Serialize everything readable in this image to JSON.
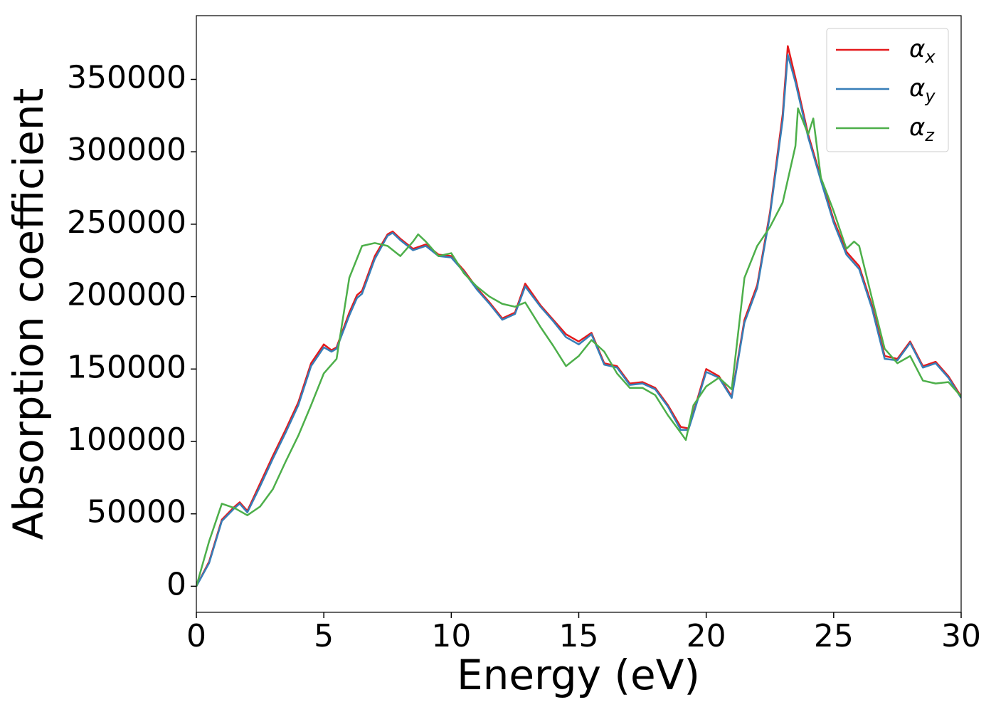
{
  "chart_data": {
    "type": "line",
    "xlabel": "Energy (eV)",
    "ylabel": "Absorption coefficient",
    "xlim": [
      0,
      30
    ],
    "xticks": [
      0,
      5,
      10,
      15,
      20,
      25,
      30
    ],
    "ylim": [
      -18000,
      394000
    ],
    "yticks": [
      0,
      50000,
      100000,
      150000,
      200000,
      250000,
      300000,
      350000
    ],
    "grid": false,
    "legend": "upper right",
    "series": [
      {
        "name": "αx",
        "color": "#e41a1c",
        "x": [
          0,
          0.5,
          1.0,
          1.5,
          1.7,
          2.0,
          2.5,
          3.0,
          3.5,
          4.0,
          4.5,
          5.0,
          5.3,
          5.5,
          6.0,
          6.3,
          6.5,
          7.0,
          7.5,
          7.7,
          8.0,
          8.5,
          9.0,
          9.5,
          10.0,
          10.5,
          11.0,
          11.5,
          12.0,
          12.5,
          12.9,
          13.5,
          14.0,
          14.5,
          15.0,
          15.5,
          16.0,
          16.5,
          17.0,
          17.5,
          18.0,
          18.5,
          19.0,
          19.3,
          19.5,
          20.0,
          20.5,
          21.0,
          21.5,
          22.0,
          22.5,
          23.0,
          23.2,
          23.5,
          24.0,
          24.5,
          25.0,
          25.5,
          26.0,
          26.5,
          27.0,
          27.5,
          28.0,
          28.5,
          29.0,
          29.5,
          30.0
        ],
        "values": [
          0,
          17000,
          46000,
          55000,
          58000,
          52000,
          71000,
          90000,
          108000,
          127000,
          154000,
          167000,
          163000,
          165000,
          189000,
          201000,
          204000,
          228000,
          243000,
          245000,
          240000,
          233000,
          236000,
          229000,
          228000,
          218000,
          206000,
          196000,
          185000,
          189000,
          209000,
          194000,
          184000,
          174000,
          169000,
          175000,
          154000,
          152000,
          140000,
          141000,
          137000,
          125000,
          110000,
          109000,
          120000,
          150000,
          145000,
          131000,
          184000,
          208000,
          258000,
          326000,
          373000,
          351000,
          312000,
          282000,
          253000,
          231000,
          221000,
          194000,
          159000,
          157000,
          169000,
          152000,
          155000,
          145000,
          131000
        ]
      },
      {
        "name": "αy",
        "color": "#377eb8",
        "x": [
          0,
          0.5,
          1.0,
          1.5,
          1.7,
          2.0,
          2.5,
          3.0,
          3.5,
          4.0,
          4.5,
          5.0,
          5.3,
          5.5,
          6.0,
          6.3,
          6.5,
          7.0,
          7.5,
          7.7,
          8.0,
          8.5,
          9.0,
          9.5,
          10.0,
          10.5,
          11.0,
          11.5,
          12.0,
          12.5,
          12.9,
          13.5,
          14.0,
          14.5,
          15.0,
          15.5,
          16.0,
          16.5,
          17.0,
          17.5,
          18.0,
          18.5,
          19.0,
          19.3,
          19.5,
          20.0,
          20.5,
          21.0,
          21.5,
          22.0,
          22.5,
          23.0,
          23.2,
          23.5,
          24.0,
          24.5,
          25.0,
          25.5,
          26.0,
          26.5,
          27.0,
          27.5,
          28.0,
          28.5,
          29.0,
          29.5,
          30.0
        ],
        "values": [
          0,
          16000,
          45000,
          54000,
          57000,
          51000,
          69000,
          88000,
          106000,
          125000,
          152000,
          165000,
          162000,
          164000,
          187000,
          199000,
          202000,
          226000,
          242000,
          244000,
          239000,
          232000,
          235000,
          228000,
          227000,
          217000,
          205000,
          195000,
          184000,
          188000,
          207000,
          193000,
          183000,
          172000,
          167000,
          174000,
          153000,
          151000,
          139000,
          140000,
          136000,
          124000,
          108000,
          108000,
          119000,
          148000,
          144000,
          130000,
          182000,
          206000,
          256000,
          322000,
          367000,
          348000,
          310000,
          280000,
          251000,
          229000,
          219000,
          192000,
          157000,
          156000,
          168000,
          151000,
          154000,
          144000,
          130000
        ]
      },
      {
        "name": "αz",
        "color": "#4daf4a",
        "x": [
          0,
          0.5,
          1.0,
          1.5,
          2.0,
          2.5,
          3.0,
          3.5,
          4.0,
          4.5,
          5.0,
          5.5,
          6.0,
          6.5,
          7.0,
          7.5,
          8.0,
          8.5,
          8.7,
          9.0,
          9.5,
          10.0,
          10.5,
          11.0,
          11.5,
          12.0,
          12.5,
          12.9,
          13.5,
          14.0,
          14.5,
          15.0,
          15.5,
          16.0,
          16.5,
          17.0,
          17.5,
          18.0,
          18.5,
          19.0,
          19.2,
          19.5,
          20.0,
          20.5,
          21.0,
          21.5,
          22.0,
          22.5,
          23.0,
          23.5,
          23.6,
          24.0,
          24.2,
          24.5,
          25.0,
          25.5,
          25.8,
          26.0,
          26.5,
          27.0,
          27.5,
          28.0,
          28.5,
          29.0,
          29.5,
          30.0
        ],
        "values": [
          0,
          31000,
          57000,
          54000,
          49000,
          55000,
          67000,
          86000,
          104000,
          125000,
          147000,
          157000,
          213000,
          235000,
          237000,
          235000,
          228000,
          238000,
          243000,
          238000,
          228000,
          230000,
          216000,
          207000,
          200000,
          195000,
          193000,
          196000,
          179000,
          166000,
          152000,
          159000,
          170000,
          162000,
          147000,
          137000,
          137000,
          132000,
          118000,
          106000,
          101000,
          125000,
          138000,
          144000,
          136000,
          213000,
          235000,
          248000,
          265000,
          304000,
          330000,
          312000,
          323000,
          282000,
          259000,
          233000,
          238000,
          235000,
          199000,
          164000,
          154000,
          159000,
          142000,
          140000,
          141000,
          131000
        ]
      }
    ]
  }
}
